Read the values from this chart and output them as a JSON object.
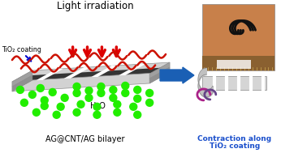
{
  "title": "Light irradiation",
  "left_label1": "TiO₂ coating",
  "left_label2": "AG@CNT/AG bilayer",
  "h2o_label": "H₂O",
  "right_label1": "Contraction along",
  "right_label2": "TiO₂ coating",
  "bg_color": "#ffffff",
  "title_color": "#000000",
  "arrow_color_red": "#dd0000",
  "arrow_color_blue": "#1a5fb4",
  "dot_color": "#22ee00",
  "tio2_color": "#cc1100",
  "blue_label_color": "#1a4fcc",
  "photo_bg": "#c8804a",
  "slab_top_color": "#c8c8c8",
  "slab_mid_color": "#404040",
  "slab_bot_color": "#b0b0b0",
  "slab_side_color": "#808080"
}
